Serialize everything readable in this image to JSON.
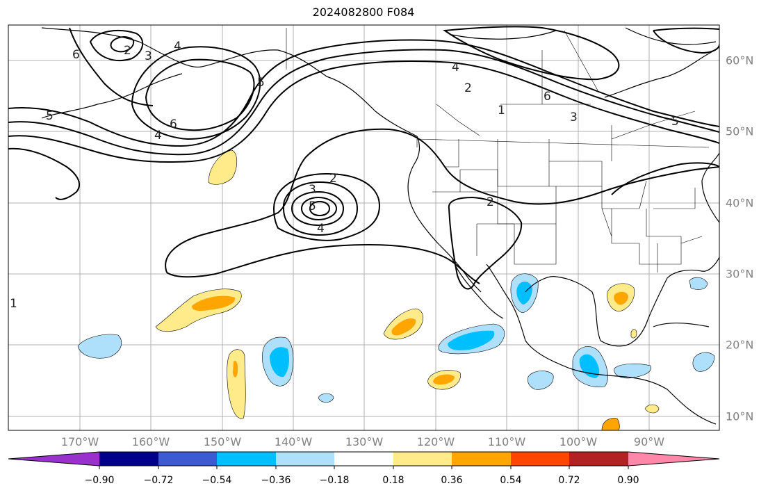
{
  "title": "2024082800 F084",
  "map": {
    "lon_labels": [
      "170°W",
      "160°W",
      "150°W",
      "140°W",
      "130°W",
      "120°W",
      "110°W",
      "100°W",
      "90°W"
    ],
    "lat_labels": [
      "60°N",
      "50°N",
      "40°N",
      "30°N",
      "20°N",
      "10°N"
    ],
    "contour_labels": [
      "6",
      "2",
      "3",
      "4",
      "5",
      "6",
      "4",
      "5",
      "2",
      "3",
      "5",
      "4",
      "2",
      "4",
      "2",
      "1",
      "6",
      "3",
      "5",
      "1"
    ],
    "colors": {
      "contour": "#000000",
      "coast": "#000000",
      "grid": "#b0b0b0",
      "neg_light": "#aee0fb",
      "neg_mid": "#00bfff",
      "pos_light": "#ffeb8a",
      "pos_mid": "#ffa500"
    }
  },
  "colorbar": {
    "ticks": [
      "−0.90",
      "−0.72",
      "−0.54",
      "−0.36",
      "−0.18",
      "0.18",
      "0.36",
      "0.54",
      "0.72",
      "0.90"
    ],
    "colors": [
      "#9932cc",
      "#00008b",
      "#3c5ad2",
      "#00bfff",
      "#aee0fb",
      "#ffffff",
      "#ffeb8a",
      "#ffa500",
      "#ff4500",
      "#b22222",
      "#ff88aa"
    ]
  }
}
